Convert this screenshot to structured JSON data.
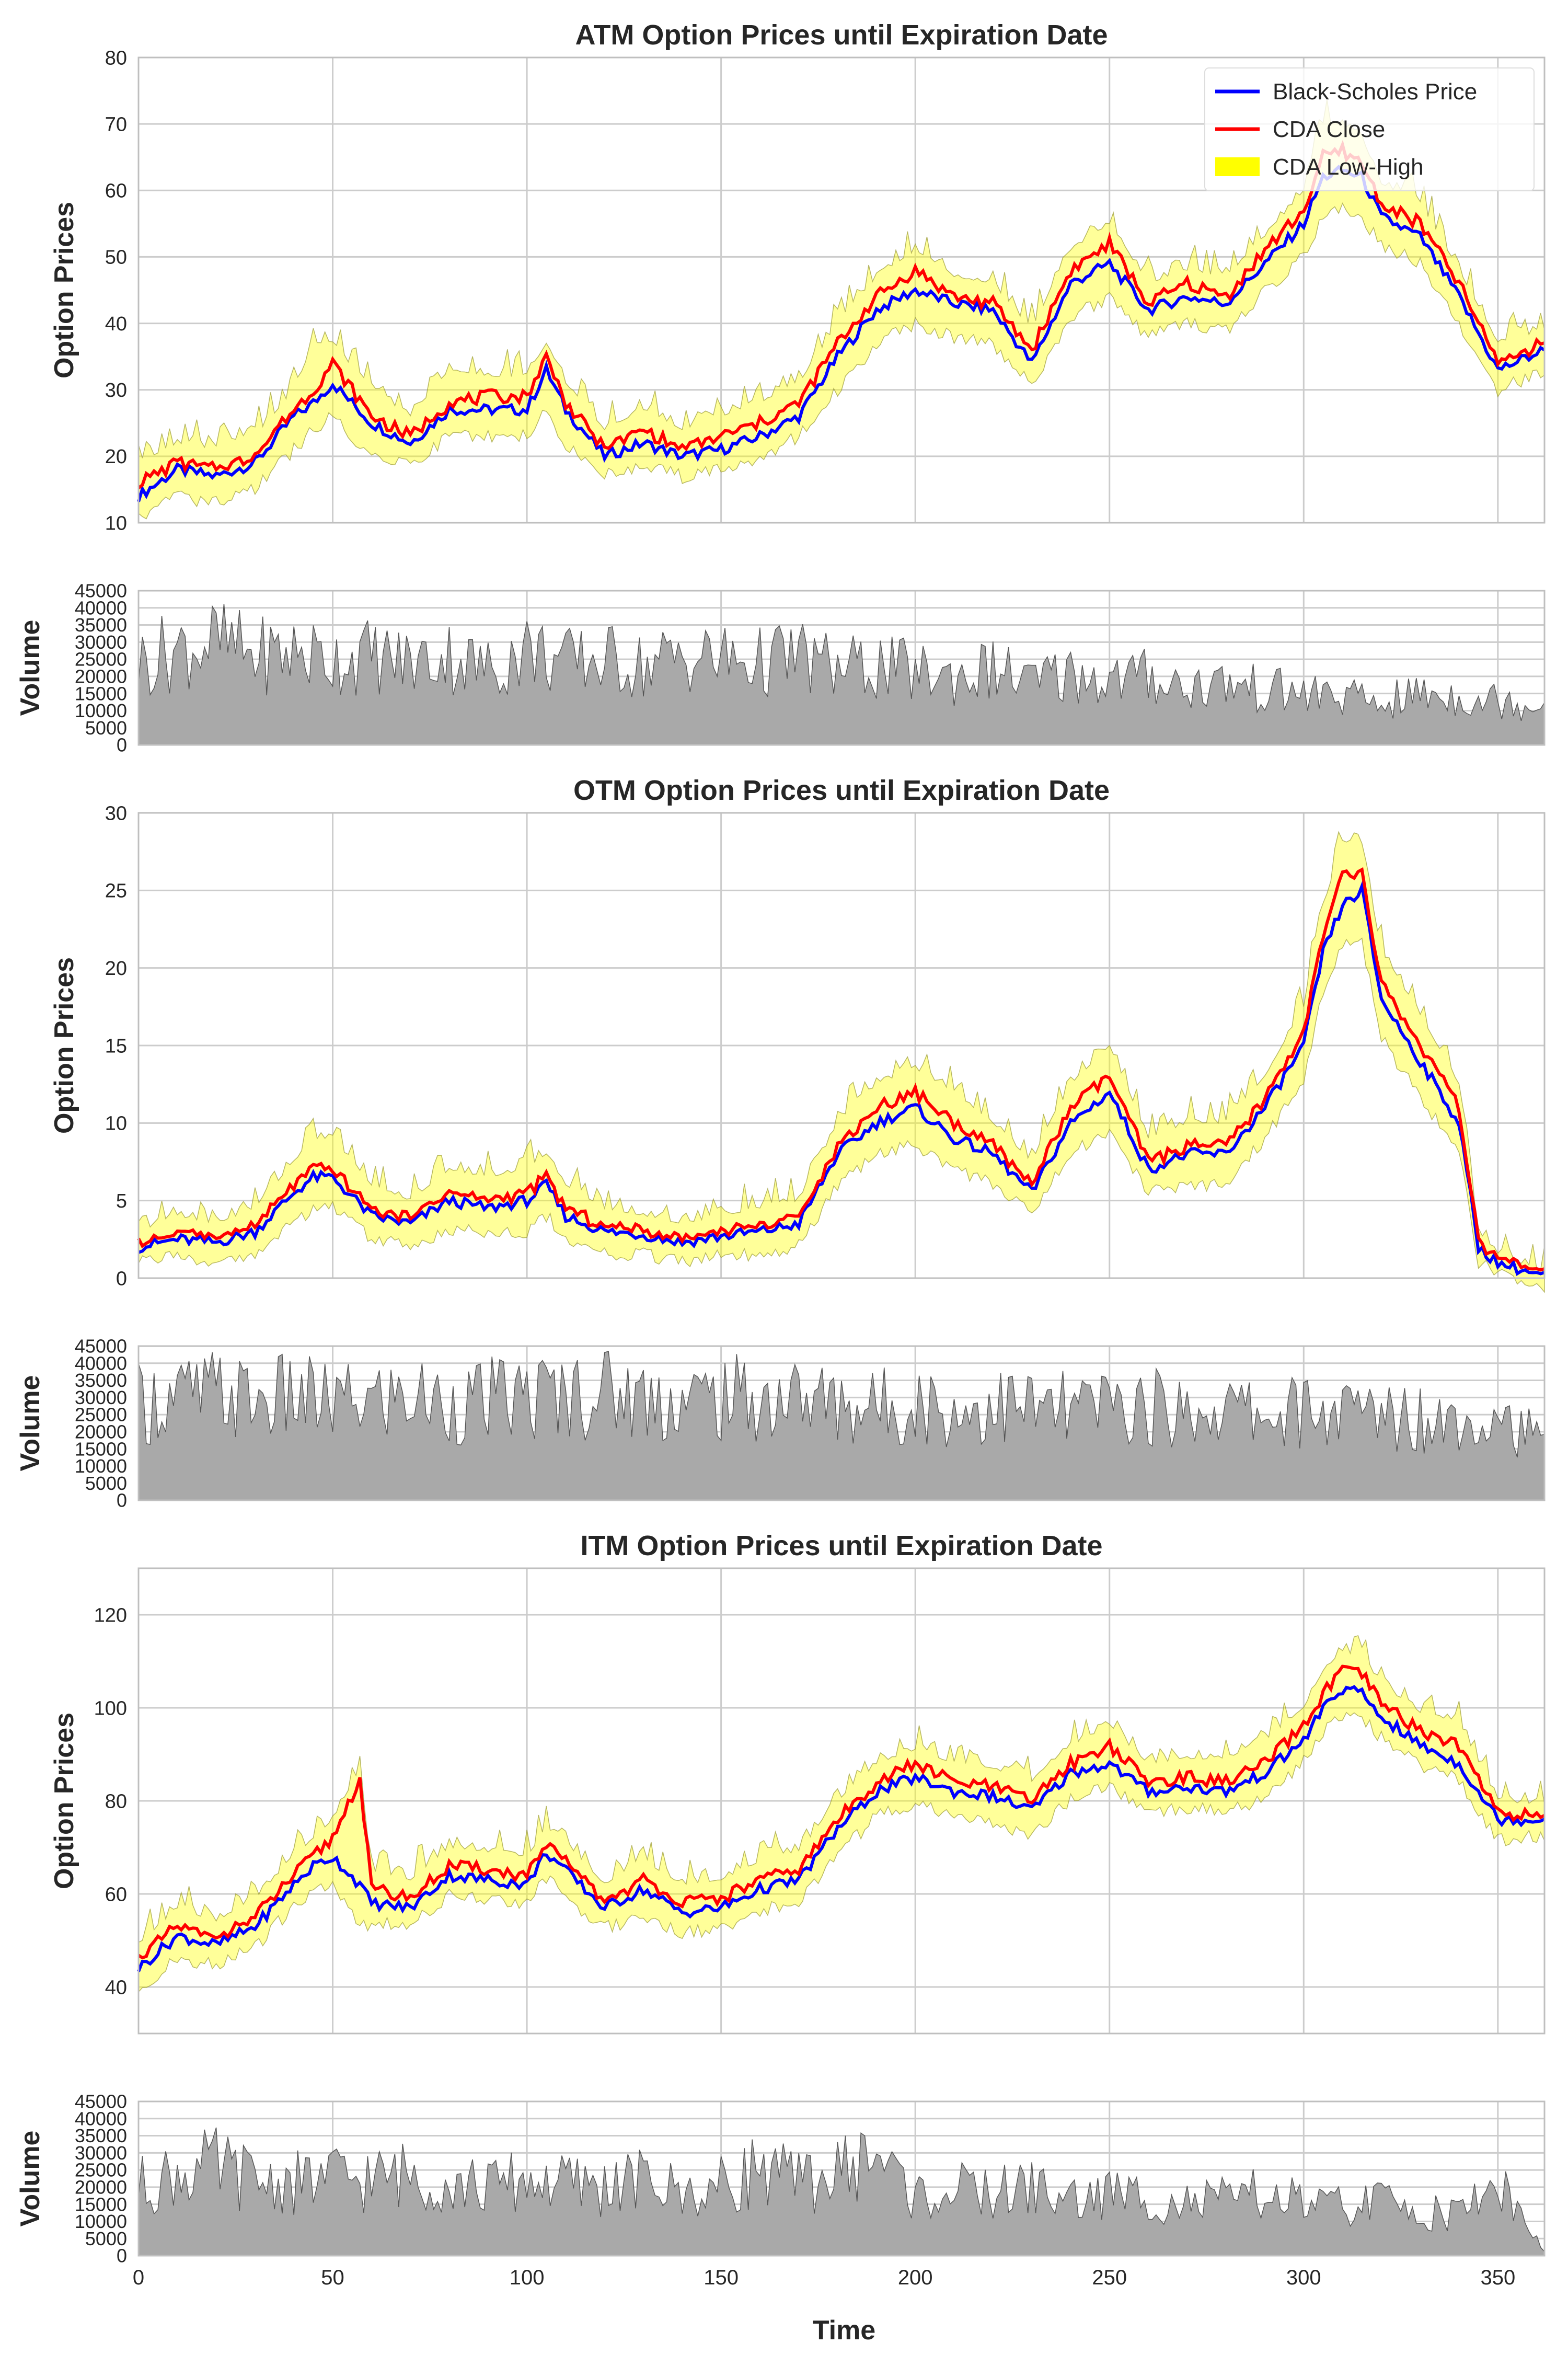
{
  "figure": {
    "xlabel": "Time"
  },
  "chart_data": [
    {
      "type": "line",
      "title": "ATM Option Prices until Expiration Date",
      "ylabel": "Option Prices",
      "xlim": [
        0,
        362
      ],
      "ylim": [
        10,
        80
      ],
      "yticks": [
        10,
        20,
        30,
        40,
        50,
        60,
        70,
        80
      ],
      "xticks": [
        0,
        50,
        100,
        150,
        200,
        250,
        300,
        350
      ],
      "grid": true,
      "legend": {
        "position": "top-right",
        "entries": [
          "Black-Scholes Price",
          "CDA Close",
          "CDA Low-High"
        ]
      },
      "x": [
        0,
        10,
        20,
        30,
        40,
        45,
        50,
        60,
        70,
        80,
        90,
        100,
        105,
        110,
        120,
        130,
        140,
        150,
        160,
        170,
        180,
        190,
        200,
        210,
        220,
        230,
        240,
        250,
        260,
        270,
        280,
        290,
        300,
        305,
        310,
        315,
        320,
        330,
        340,
        350,
        362
      ],
      "series": [
        {
          "name": "Black-Scholes Price",
          "color": "#0000ff",
          "values": [
            14,
            18,
            17,
            19,
            26,
            28,
            31,
            25,
            22,
            27,
            27,
            27,
            33,
            27,
            20,
            22,
            20,
            21,
            23,
            26,
            35,
            42,
            45,
            43,
            42,
            34,
            46,
            49,
            42,
            44,
            43,
            49,
            55,
            62,
            63,
            62,
            56,
            53,
            44,
            33,
            36
          ]
        },
        {
          "name": "CDA Close",
          "color": "#ff0000",
          "values": [
            16,
            19,
            18,
            20,
            27,
            30,
            34,
            26,
            23,
            28,
            29,
            29,
            35,
            28,
            21,
            24,
            21,
            23,
            25,
            28,
            37,
            44,
            48,
            44,
            43,
            36,
            48,
            52,
            43,
            46,
            44,
            51,
            57,
            65,
            66,
            64,
            58,
            55,
            46,
            34,
            37
          ]
        },
        {
          "name": "CDA Low-High",
          "type": "band",
          "color": "#ffff00",
          "low": [
            12,
            15,
            14,
            16,
            22,
            25,
            27,
            21,
            20,
            24,
            24,
            24,
            28,
            23,
            18,
            20,
            18,
            19,
            21,
            24,
            31,
            38,
            41,
            39,
            38,
            32,
            42,
            45,
            39,
            41,
            40,
            46,
            51,
            57,
            59,
            57,
            53,
            50,
            41,
            31,
            34
          ],
          "high": [
            19,
            22,
            21,
            23,
            30,
            37,
            37,
            30,
            26,
            33,
            32,
            32,
            37,
            31,
            24,
            27,
            24,
            26,
            28,
            31,
            40,
            47,
            51,
            47,
            46,
            39,
            51,
            55,
            46,
            48,
            47,
            53,
            60,
            70,
            70,
            68,
            61,
            58,
            48,
            37,
            39
          ]
        }
      ]
    },
    {
      "type": "area",
      "ylabel": "Volume",
      "xlim": [
        0,
        362
      ],
      "ylim": [
        0,
        45000
      ],
      "yticks": [
        0,
        5000,
        10000,
        15000,
        20000,
        25000,
        30000,
        35000,
        40000,
        45000
      ],
      "color": "#a9a9a9",
      "x": [
        0,
        10,
        20,
        30,
        40,
        50,
        60,
        70,
        80,
        90,
        100,
        110,
        120,
        130,
        140,
        150,
        160,
        170,
        180,
        190,
        200,
        210,
        220,
        230,
        240,
        250,
        260,
        270,
        280,
        290,
        300,
        310,
        320,
        330,
        340,
        350,
        362
      ],
      "values": [
        24000,
        28000,
        30000,
        26000,
        27000,
        25000,
        26000,
        24000,
        26000,
        22000,
        28000,
        24000,
        25000,
        23000,
        26000,
        25000,
        24000,
        26000,
        22000,
        23000,
        21000,
        20000,
        22000,
        18000,
        21000,
        19000,
        20000,
        17000,
        18000,
        16000,
        15000,
        14000,
        12000,
        15000,
        14000,
        13000,
        12000
      ]
    },
    {
      "type": "line",
      "title": "OTM Option Prices until Expiration Date",
      "ylabel": "Option Prices",
      "xlim": [
        0,
        362
      ],
      "ylim": [
        0,
        30
      ],
      "yticks": [
        0,
        5,
        10,
        15,
        20,
        25,
        30
      ],
      "xticks": [
        0,
        50,
        100,
        150,
        200,
        250,
        300,
        350
      ],
      "grid": true,
      "x": [
        0,
        10,
        20,
        30,
        40,
        45,
        50,
        60,
        70,
        80,
        90,
        100,
        105,
        110,
        120,
        130,
        140,
        150,
        160,
        170,
        180,
        190,
        200,
        210,
        220,
        230,
        240,
        250,
        260,
        270,
        280,
        290,
        300,
        305,
        310,
        315,
        320,
        330,
        340,
        345,
        350,
        362
      ],
      "series": [
        {
          "name": "Black-Scholes Price",
          "color": "#0000ff",
          "values": [
            2,
            2.5,
            2.3,
            3,
            5.5,
            6.5,
            6.5,
            4,
            3.5,
            5,
            4.5,
            5,
            6,
            4,
            3,
            2.8,
            2.3,
            2.7,
            3,
            3.5,
            8,
            10,
            11,
            9,
            8,
            5.5,
            10,
            12,
            7,
            8,
            8,
            11,
            15,
            21,
            24,
            25,
            18,
            14,
            10,
            2,
            1,
            0.1
          ]
        },
        {
          "name": "CDA Close",
          "color": "#ff0000",
          "values": [
            2.2,
            2.8,
            2.5,
            3.3,
            6,
            7,
            7,
            4.3,
            3.8,
            5.5,
            5,
            5.5,
            6.5,
            4.5,
            3.3,
            3,
            2.5,
            3,
            3.3,
            3.8,
            8.5,
            11,
            12,
            10,
            8.5,
            6,
            11,
            13,
            7.5,
            8.5,
            8.5,
            11.5,
            16,
            22,
            26,
            26,
            19,
            15,
            11,
            2.2,
            1.1,
            0.1
          ]
        },
        {
          "name": "CDA Low-High",
          "type": "band",
          "color": "#ffff00",
          "low": [
            1.5,
            1.8,
            1.6,
            2,
            4,
            5,
            5,
            3,
            2.5,
            3.5,
            3.5,
            3.5,
            4.5,
            3,
            2,
            2,
            1.5,
            2,
            2,
            2.5,
            6.5,
            8.5,
            9,
            7.5,
            6.5,
            4.5,
            8.5,
            10,
            6,
            6.5,
            6.5,
            9.5,
            13,
            19,
            22,
            22,
            16,
            12,
            9,
            1.5,
            0.7,
            0
          ]
        },
        {
          "name": "CDA Low-High",
          "type": "band-high",
          "color": "#ffff00",
          "high": [
            3,
            4,
            3.5,
            4.5,
            7.5,
            9,
            9,
            6,
            5,
            7,
            6.5,
            7,
            8,
            6,
            4.5,
            4,
            3.5,
            4,
            4.5,
            5,
            10,
            12.5,
            13.5,
            12,
            10,
            7.5,
            12.5,
            15,
            9,
            10,
            10,
            13,
            17.5,
            24,
            28,
            28,
            21,
            17,
            12.5,
            3,
            1.6,
            0.3
          ]
        }
      ]
    },
    {
      "type": "area",
      "ylabel": "Volume",
      "xlim": [
        0,
        362
      ],
      "ylim": [
        0,
        45000
      ],
      "yticks": [
        0,
        5000,
        10000,
        15000,
        20000,
        25000,
        30000,
        35000,
        40000,
        45000
      ],
      "color": "#a9a9a9",
      "x": [
        0,
        10,
        20,
        30,
        40,
        50,
        60,
        70,
        80,
        90,
        100,
        110,
        120,
        130,
        140,
        150,
        160,
        170,
        180,
        190,
        200,
        210,
        220,
        230,
        240,
        250,
        260,
        270,
        280,
        290,
        300,
        310,
        320,
        330,
        340,
        350,
        362
      ],
      "values": [
        28000,
        30000,
        31000,
        29000,
        30000,
        28000,
        29000,
        30000,
        28000,
        29000,
        30000,
        31000,
        32000,
        30000,
        29000,
        30000,
        29000,
        30000,
        28000,
        27000,
        29000,
        25000,
        28000,
        27000,
        26000,
        28000,
        27000,
        26000,
        27000,
        25000,
        26000,
        25000,
        26000,
        24000,
        25000,
        26000,
        15000
      ]
    },
    {
      "type": "line",
      "title": "ITM Option Prices until Expiration Date",
      "ylabel": "Option Prices",
      "xlim": [
        0,
        362
      ],
      "ylim": [
        30,
        130
      ],
      "yticks": [
        40,
        60,
        80,
        100,
        120
      ],
      "xticks": [
        0,
        50,
        100,
        150,
        200,
        250,
        300,
        350
      ],
      "grid": true,
      "x": [
        0,
        10,
        20,
        30,
        40,
        45,
        50,
        57,
        60,
        70,
        80,
        90,
        100,
        105,
        110,
        120,
        130,
        140,
        150,
        160,
        170,
        180,
        190,
        200,
        210,
        220,
        230,
        240,
        250,
        260,
        270,
        280,
        290,
        300,
        305,
        310,
        315,
        320,
        330,
        340,
        350,
        362
      ],
      "series": [
        {
          "name": "Black-Scholes Price",
          "color": "#0000ff",
          "values": [
            44,
            51,
            49,
            53,
            62,
            66,
            68,
            62,
            58,
            57,
            64,
            63,
            62,
            69,
            65,
            57,
            61,
            56,
            57,
            61,
            63,
            74,
            82,
            85,
            82,
            81,
            78,
            86,
            88,
            82,
            83,
            82,
            86,
            93,
            100,
            104,
            103,
            98,
            92,
            88,
            76,
            76
          ]
        },
        {
          "name": "CDA Close",
          "color": "#ff0000",
          "values": [
            46,
            53,
            50,
            55,
            64,
            68,
            72,
            85,
            61,
            59,
            66,
            65,
            64,
            70,
            67,
            58,
            63,
            58,
            59,
            63,
            65,
            76,
            84,
            88,
            84,
            83,
            80,
            88,
            92,
            84,
            85,
            84,
            88,
            96,
            103,
            108,
            107,
            101,
            95,
            92,
            77,
            77
          ]
        },
        {
          "name": "CDA Low-High",
          "type": "band",
          "color": "#ffff00",
          "low": [
            41,
            48,
            46,
            50,
            59,
            62,
            64,
            55,
            55,
            55,
            61,
            60,
            59,
            65,
            61,
            54,
            57,
            53,
            54,
            58,
            60,
            70,
            78,
            81,
            78,
            77,
            74,
            82,
            85,
            79,
            80,
            79,
            82,
            90,
            96,
            100,
            99,
            95,
            89,
            86,
            73,
            74
          ],
          "high": [
            49,
            57,
            54,
            59,
            68,
            72,
            76,
            87,
            65,
            63,
            70,
            69,
            68,
            74,
            71,
            62,
            67,
            62,
            63,
            67,
            69,
            80,
            88,
            91,
            88,
            87,
            84,
            92,
            96,
            88,
            89,
            89,
            93,
            100,
            108,
            112,
            111,
            105,
            99,
            97,
            80,
            79
          ]
        }
      ]
    },
    {
      "type": "area",
      "ylabel": "Volume",
      "xlabel": "Time",
      "xlim": [
        0,
        362
      ],
      "ylim": [
        0,
        45000
      ],
      "yticks": [
        0,
        5000,
        10000,
        15000,
        20000,
        25000,
        30000,
        35000,
        40000,
        45000
      ],
      "xticks": [
        0,
        50,
        100,
        150,
        200,
        250,
        300,
        350
      ],
      "color": "#a9a9a9",
      "x": [
        0,
        10,
        20,
        30,
        40,
        50,
        60,
        70,
        80,
        90,
        100,
        110,
        120,
        130,
        140,
        150,
        160,
        170,
        180,
        190,
        200,
        210,
        220,
        230,
        240,
        250,
        260,
        270,
        280,
        290,
        300,
        310,
        320,
        330,
        340,
        350,
        362
      ],
      "values": [
        20000,
        24000,
        26000,
        22000,
        21000,
        23000,
        22000,
        24000,
        21000,
        20000,
        22000,
        21000,
        20000,
        22000,
        18000,
        20000,
        26000,
        21000,
        24000,
        30000,
        17000,
        19000,
        18000,
        20000,
        16000,
        18000,
        17000,
        15000,
        16000,
        18000,
        15000,
        14000,
        16000,
        13000,
        12000,
        22000,
        1000
      ]
    }
  ]
}
